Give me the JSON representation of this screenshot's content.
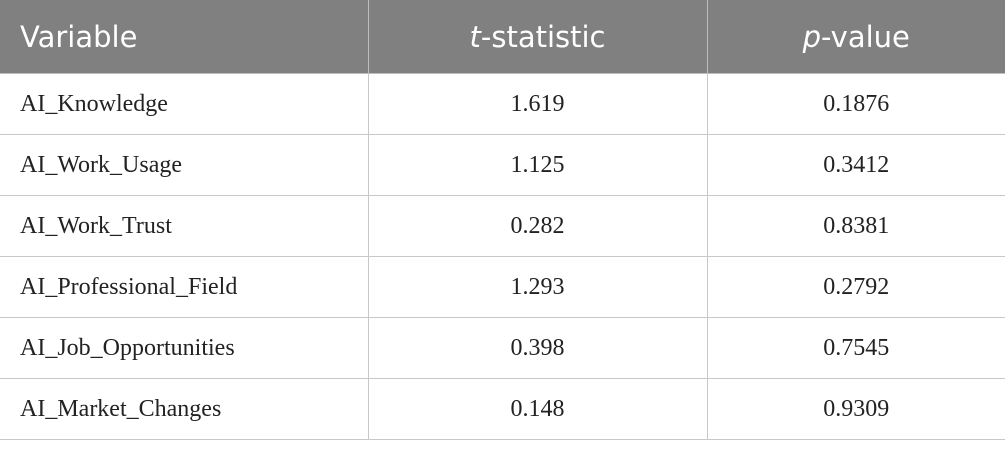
{
  "table": {
    "header": [
      "Variable",
      "t-statistic",
      "p-value"
    ],
    "rows": [
      [
        "AI_Knowledge",
        1.619,
        0.1876
      ],
      [
        "AI_Work_Usage",
        1.125,
        0.3412
      ],
      [
        "AI_Work_Trust",
        0.282,
        0.8381
      ],
      [
        "AI_Professional_Field",
        1.293,
        0.2792
      ],
      [
        "AI_Job_Opportunities",
        0.398,
        0.7545
      ],
      [
        "AI_Market_Changes",
        0.148,
        0.9309
      ]
    ]
  }
}
